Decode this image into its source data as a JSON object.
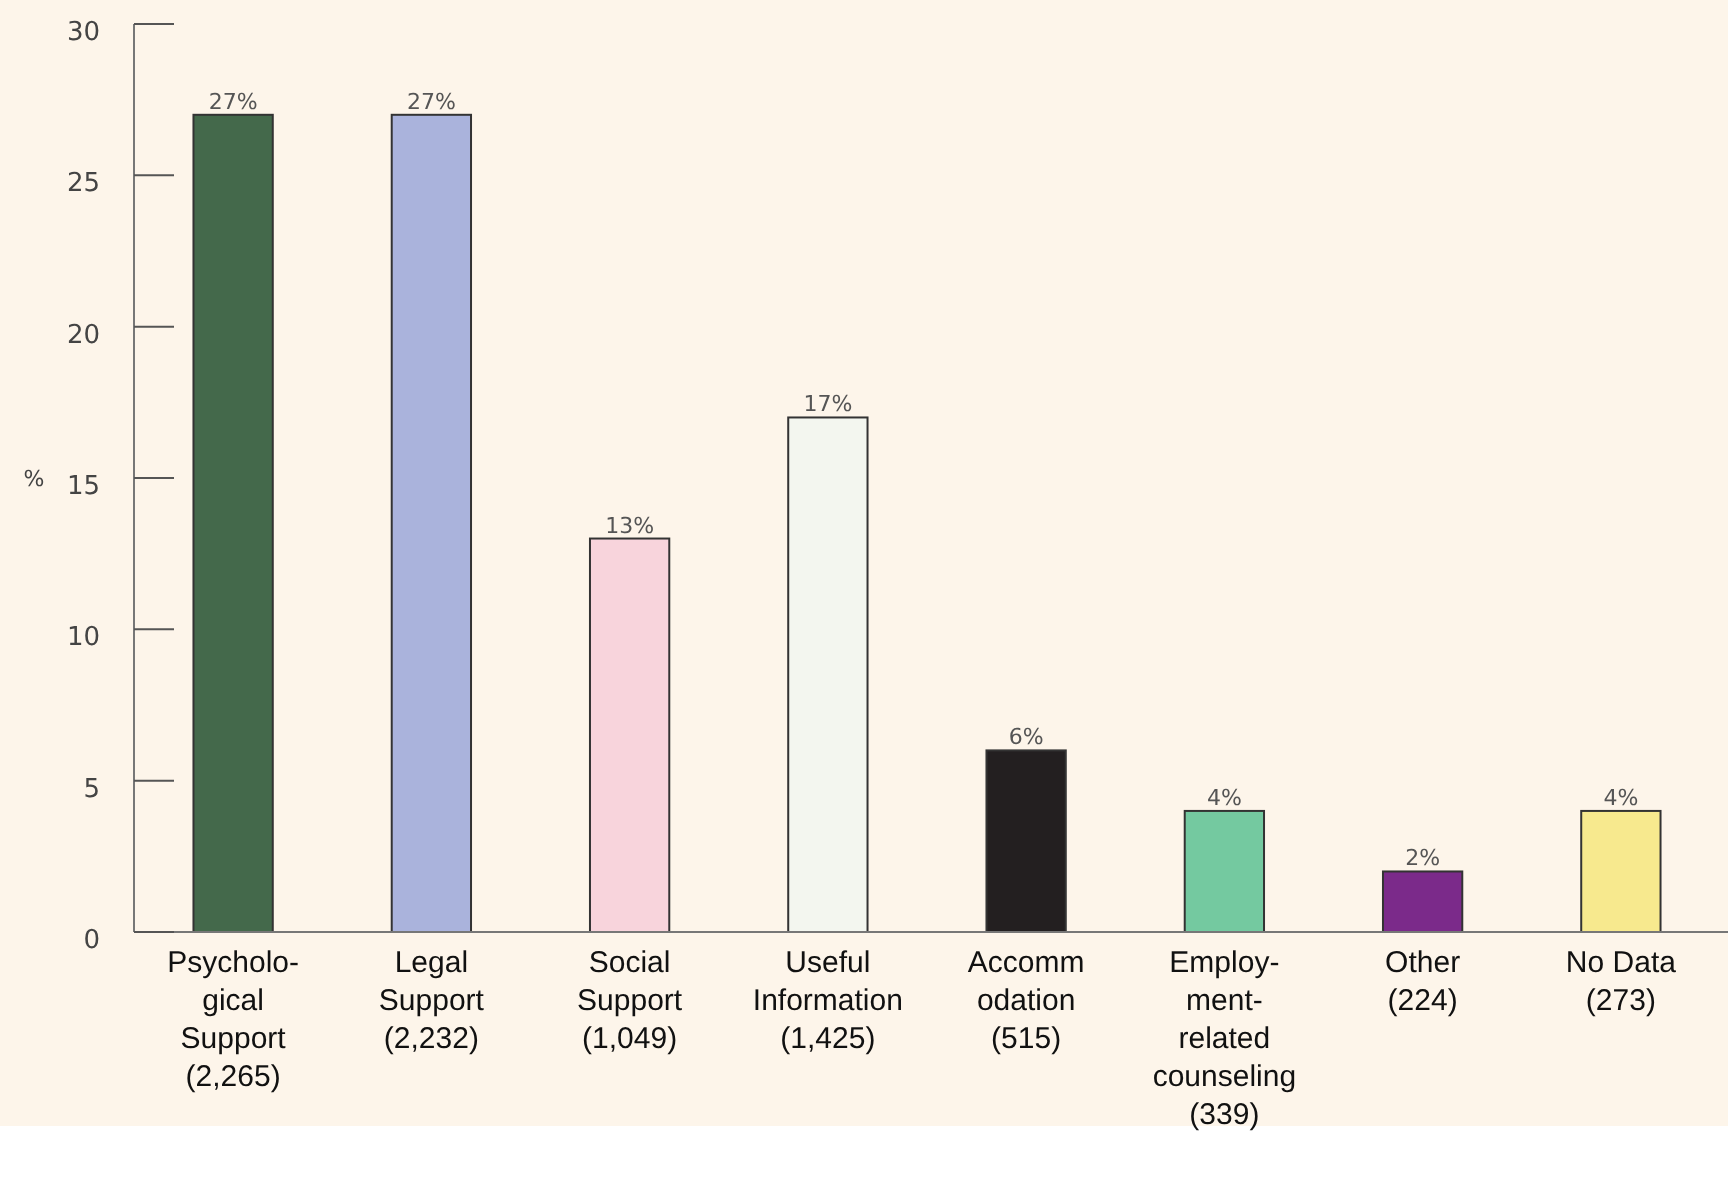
{
  "chart_data": {
    "type": "bar",
    "ylabel": "%",
    "categories": [
      "Psycholo-\ngical\nSupport\n(2,265)",
      "Legal\nSupport\n(2,232)",
      "Social\nSupport\n(1,049)",
      "Useful\nInformation\n(1,425)",
      "Accomm\nodation\n(515)",
      "Employ-\nment-\nrelated\ncounseling\n(339)",
      "Other\n(224)",
      "No Data\n(273)"
    ],
    "values": [
      27,
      27,
      13,
      17,
      6,
      4,
      2,
      4
    ],
    "value_labels": [
      "27%",
      "27%",
      "13%",
      "17%",
      "6%",
      "4%",
      "2%",
      "4%"
    ],
    "colors": [
      "#44694b",
      "#aab3dc",
      "#f8d4dc",
      "#f3f6ef",
      "#231f20",
      "#74c9a0",
      "#7b2a8a",
      "#f7e98e"
    ],
    "ylim": [
      0,
      30
    ],
    "yticks": [
      0,
      5,
      10,
      15,
      20,
      25,
      30
    ],
    "grid": false
  }
}
